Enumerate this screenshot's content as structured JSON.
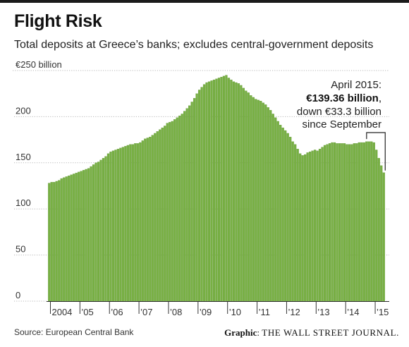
{
  "header": {
    "title": "Flight Risk",
    "subtitle": "Total deposits at Greece’s banks; excludes central-government deposits"
  },
  "footer": {
    "source": "Source: European Central Bank",
    "credit_label": "Graphic",
    "credit_outlet": "THE WALL STREET JOURNAL."
  },
  "chart_data": {
    "type": "bar",
    "title": "Flight Risk",
    "subtitle": "Total deposits at Greece’s banks; excludes central-government deposits",
    "ylim": [
      0,
      250
    ],
    "y_ticks": [
      {
        "value": 0,
        "label": "0"
      },
      {
        "value": 50,
        "label": "50"
      },
      {
        "value": 100,
        "label": "100"
      },
      {
        "value": 150,
        "label": "150"
      },
      {
        "value": 200,
        "label": "200"
      },
      {
        "value": 250,
        "label": "€250 billion"
      }
    ],
    "x_ticks": [
      "2004",
      "’05",
      "’06",
      "’07",
      "’08",
      "’09",
      "’10",
      "’11",
      "’12",
      "’13",
      "’14",
      "’15"
    ],
    "first_month": "2003-12",
    "annual_values": {
      "2003": [
        128
      ],
      "2004": [
        129,
        129,
        130,
        131,
        133,
        134,
        135,
        136,
        137,
        138,
        139,
        140
      ],
      "2005": [
        141,
        142,
        143,
        144,
        146,
        148,
        150,
        151,
        153,
        155,
        157,
        160
      ],
      "2006": [
        162,
        163,
        164,
        165,
        166,
        167,
        168,
        169,
        170,
        170,
        171,
        171
      ],
      "2007": [
        172,
        174,
        176,
        177,
        178,
        180,
        182,
        184,
        186,
        188,
        190,
        193
      ],
      "2008": [
        194,
        195,
        197,
        199,
        201,
        203,
        206,
        209,
        212,
        216,
        220,
        225
      ],
      "2009": [
        229,
        232,
        235,
        237,
        238,
        239,
        240,
        241,
        242,
        243,
        244,
        245
      ],
      "2010": [
        242,
        240,
        238,
        237,
        236,
        234,
        231,
        228,
        226,
        223,
        221,
        219
      ],
      "2011": [
        218,
        217,
        215,
        213,
        210,
        207,
        203,
        199,
        195,
        191,
        188,
        185
      ],
      "2012": [
        182,
        178,
        173,
        170,
        165,
        160,
        158,
        159,
        161,
        162,
        163,
        164
      ],
      "2013": [
        163,
        165,
        167,
        169,
        170,
        171,
        172,
        172,
        171,
        171,
        171,
        171
      ],
      "2014": [
        170,
        170,
        170,
        171,
        171,
        172,
        172,
        172,
        173,
        173,
        173,
        172
      ],
      "2015": [
        164,
        155,
        147,
        139.36
      ]
    },
    "annotation": {
      "line1": "April 2015:",
      "line2": "€139.36 billion",
      "line2_suffix": ",",
      "line3": "down €33.3 billion",
      "line4": "since September",
      "from_month": "2014-09",
      "to_month": "2015-04",
      "from_value": 172.7,
      "to_value": 139.36
    },
    "colors": {
      "bar": "#78b044",
      "bar_edge": "#5a8f2e",
      "grid": "#b8b8b8",
      "axis": "#666666"
    }
  }
}
